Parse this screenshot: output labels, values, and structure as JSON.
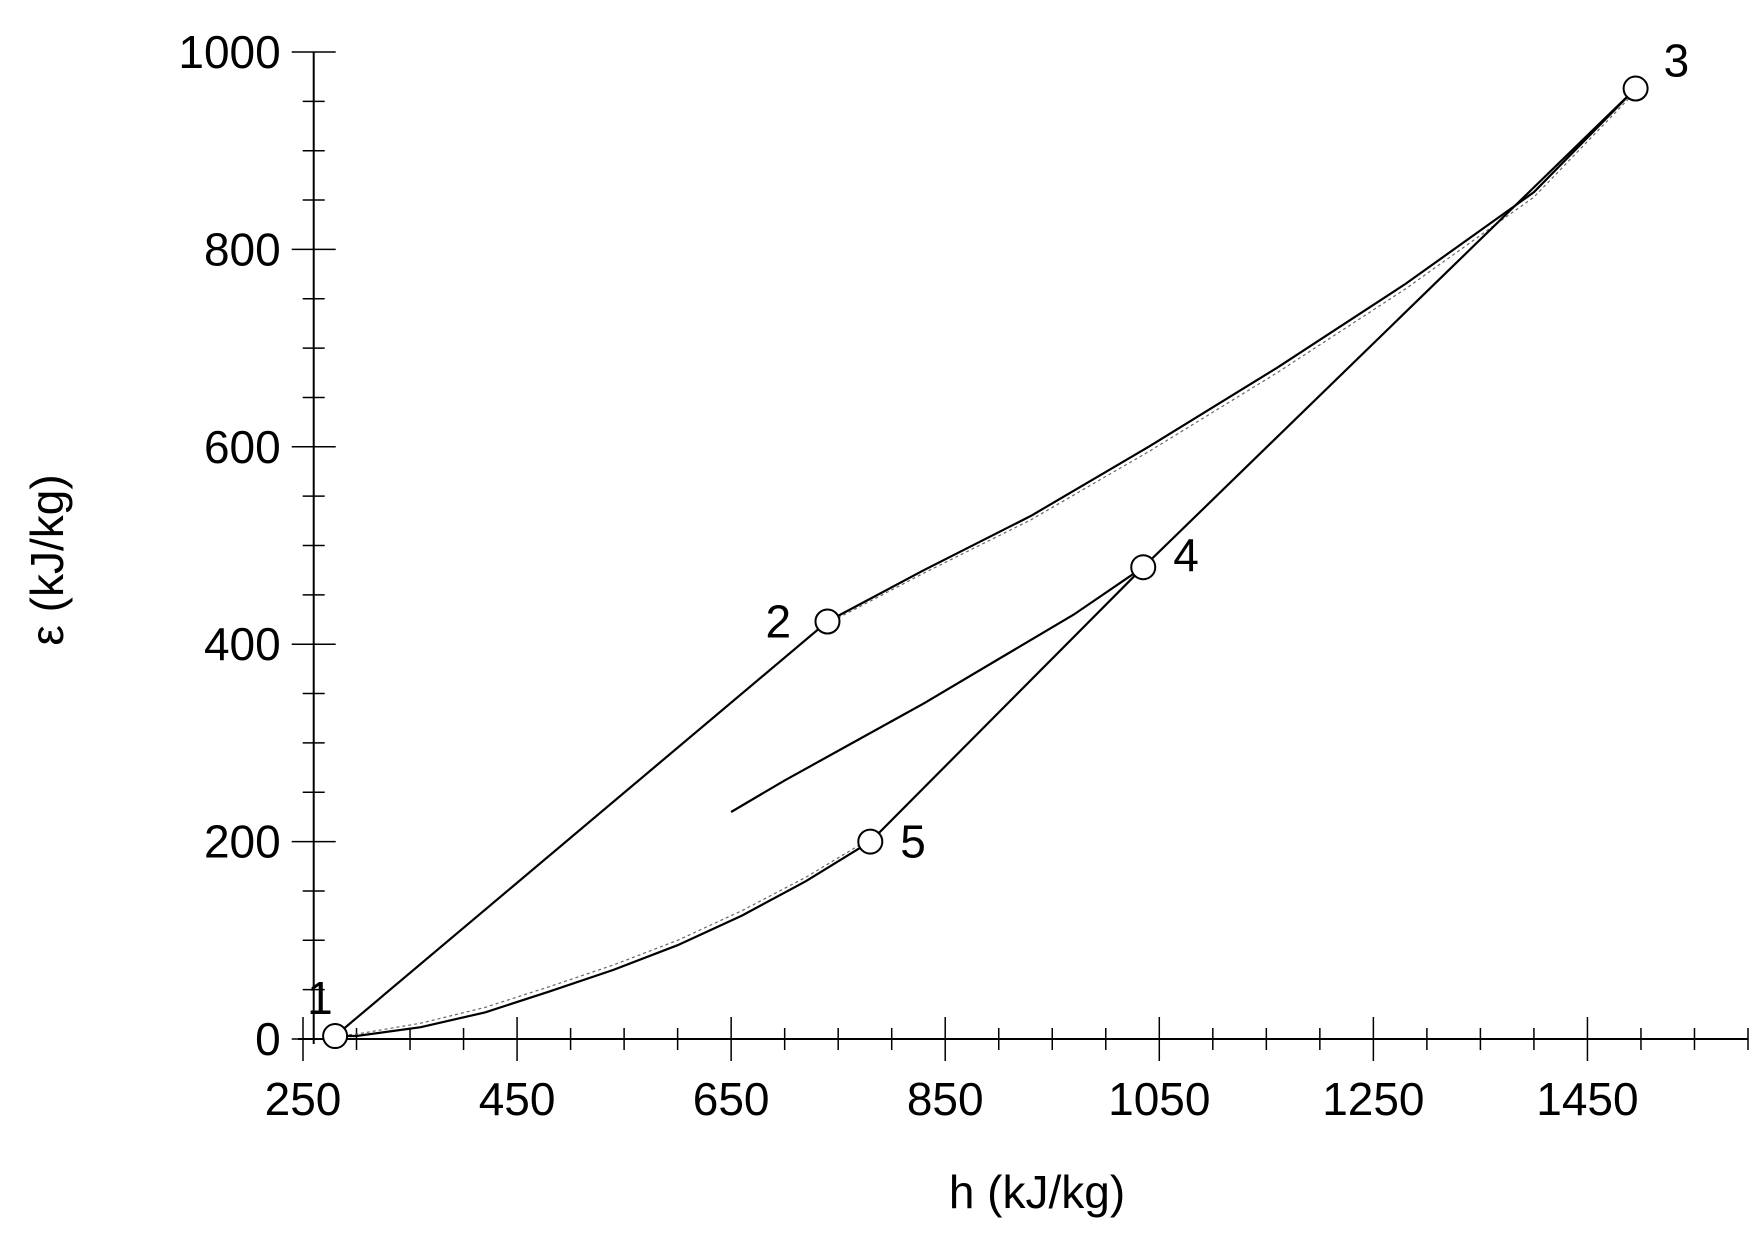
{
  "chart_data": {
    "type": "line",
    "title": "",
    "xlabel": "h (kJ/kg)",
    "ylabel": "ε  (kJ/kg)",
    "xlim": [
      250,
      1600
    ],
    "ylim": [
      0,
      1000
    ],
    "x_ticks": [
      250,
      450,
      650,
      850,
      1050,
      1250,
      1450
    ],
    "y_ticks": [
      0,
      200,
      400,
      600,
      800,
      1000
    ],
    "x_minor_step": 50,
    "y_minor_step": 50,
    "grid": false,
    "points": [
      {
        "label": "1",
        "x": 280,
        "y": 3
      },
      {
        "label": "2",
        "x": 740,
        "y": 423
      },
      {
        "label": "3",
        "x": 1495,
        "y": 963
      },
      {
        "label": "4",
        "x": 1035,
        "y": 478
      },
      {
        "label": "5",
        "x": 780,
        "y": 200
      }
    ],
    "series": [
      {
        "x": [
          280,
          740
        ],
        "y": [
          3,
          423
        ]
      },
      {
        "x": [
          740,
          830,
          930,
          1040,
          1160,
          1280,
          1400,
          1495
        ],
        "y": [
          423,
          475,
          530,
          600,
          680,
          765,
          858,
          963
        ]
      },
      {
        "x": [
          1495,
          1035
        ],
        "y": [
          963,
          478
        ]
      },
      {
        "x": [
          1035,
          780
        ],
        "y": [
          478,
          200
        ]
      },
      {
        "x": [
          780,
          720,
          660,
          600,
          540,
          480,
          420,
          360,
          300,
          280
        ],
        "y": [
          200,
          160,
          125,
          95,
          70,
          48,
          27,
          12,
          3,
          3
        ]
      },
      {
        "x": [
          650,
          700,
          760,
          830,
          900,
          970,
          1035
        ],
        "y": [
          230,
          262,
          298,
          340,
          385,
          430,
          478
        ]
      }
    ],
    "dotted_series": [
      {
        "x": [
          740,
          830,
          930,
          1040,
          1160,
          1280,
          1400,
          1495
        ],
        "y": [
          421,
          472,
          526,
          595,
          675,
          760,
          853,
          960
        ]
      },
      {
        "x": [
          780,
          720,
          660,
          600,
          540,
          480,
          420,
          360,
          300,
          280
        ],
        "y": [
          203,
          164,
          130,
          100,
          75,
          53,
          32,
          16,
          5,
          3
        ]
      }
    ]
  }
}
